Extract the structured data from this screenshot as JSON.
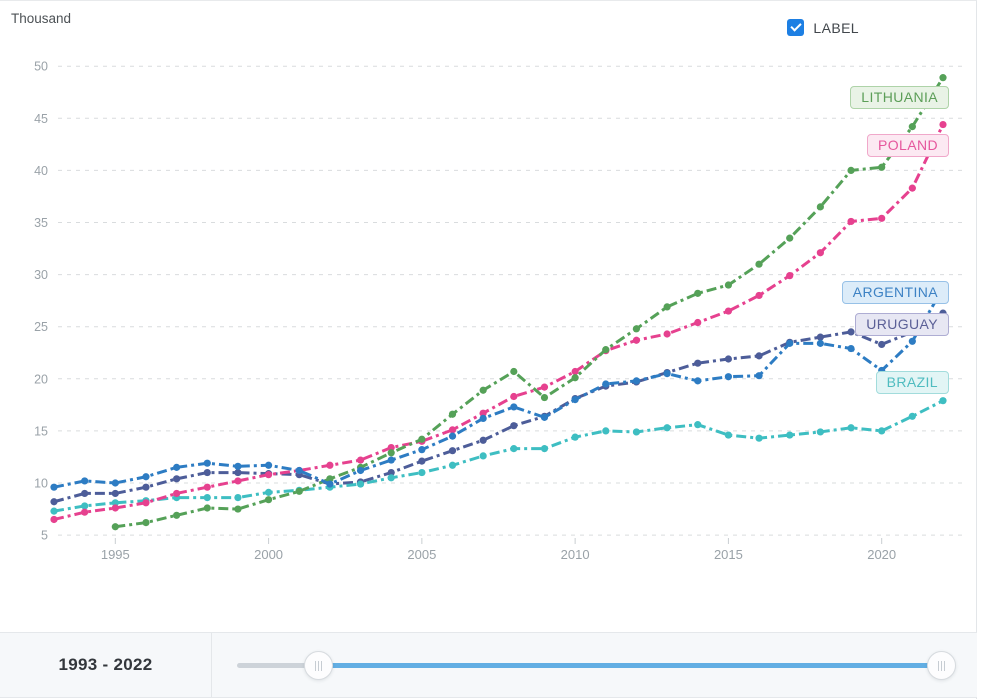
{
  "panel": {
    "y_axis_unit": "Thousand"
  },
  "label_toggle": {
    "text": "LABEL",
    "checked": true,
    "checkbox_color": "#1d7fe3"
  },
  "chart_data": {
    "type": "line",
    "title": "",
    "xlabel": "",
    "ylabel": "Thousand",
    "x": [
      1993,
      1994,
      1995,
      1996,
      1997,
      1998,
      1999,
      2000,
      2001,
      2002,
      2003,
      2004,
      2005,
      2006,
      2007,
      2008,
      2009,
      2010,
      2011,
      2012,
      2013,
      2014,
      2015,
      2016,
      2017,
      2018,
      2019,
      2020,
      2021,
      2022
    ],
    "x_tick_labels": [
      "1995",
      "2000",
      "2005",
      "2010",
      "2015",
      "2020"
    ],
    "y_tick_labels": [
      "5",
      "10",
      "15",
      "20",
      "25",
      "30",
      "35",
      "40",
      "45",
      "50"
    ],
    "ylim": [
      3.5,
      51.5
    ],
    "grid": "horizontal-dashed",
    "legend_position": "end-of-line-pills",
    "series": [
      {
        "name": "URUGUAY",
        "color": "#4d5d99",
        "label_bg": "#e7e7f3",
        "label_border": "#aeadd3",
        "label_text_color": "#5b6097",
        "label_y_value": 25.2,
        "values": [
          8.2,
          9.0,
          9.0,
          9.6,
          10.4,
          11.0,
          11.0,
          10.9,
          10.8,
          9.9,
          10.1,
          11.0,
          12.1,
          13.1,
          14.1,
          15.5,
          16.4,
          18.1,
          19.3,
          19.7,
          20.6,
          21.5,
          21.9,
          22.2,
          23.5,
          24.0,
          24.5,
          23.3,
          24.5,
          26.3
        ]
      },
      {
        "name": "BRAZIL",
        "color": "#3ebec2",
        "label_bg": "#e2f5f5",
        "label_border": "#a2dcdc",
        "label_text_color": "#4fbcc0",
        "label_y_value": 19.6,
        "values": [
          7.3,
          7.8,
          8.1,
          8.3,
          8.6,
          8.6,
          8.6,
          9.1,
          9.3,
          9.6,
          9.9,
          10.5,
          11.0,
          11.7,
          12.6,
          13.3,
          13.3,
          14.4,
          15.0,
          14.9,
          15.3,
          15.6,
          14.6,
          14.3,
          14.6,
          14.9,
          15.3,
          15.0,
          16.4,
          17.9
        ]
      },
      {
        "name": "POLAND",
        "color": "#e6418f",
        "label_bg": "#fce9f2",
        "label_border": "#f0a8ca",
        "label_text_color": "#e6579d",
        "label_y_value": 42.4,
        "values": [
          6.5,
          7.2,
          7.6,
          8.1,
          9.0,
          9.6,
          10.2,
          10.8,
          11.2,
          11.7,
          12.2,
          13.4,
          14.0,
          15.1,
          16.7,
          18.3,
          19.2,
          20.7,
          22.7,
          23.7,
          24.3,
          25.4,
          26.5,
          28.0,
          29.9,
          32.1,
          35.1,
          35.4,
          38.3,
          44.4
        ]
      },
      {
        "name": "LITHUANIA",
        "color": "#55a158",
        "label_bg": "#e9f3e6",
        "label_border": "#aed3a8",
        "label_text_color": "#5c9e58",
        "label_y_value": 47.0,
        "values": [
          null,
          null,
          5.8,
          6.2,
          6.9,
          7.6,
          7.5,
          8.4,
          9.2,
          10.4,
          11.5,
          12.9,
          14.2,
          16.6,
          18.9,
          20.7,
          18.2,
          20.1,
          22.8,
          24.8,
          26.9,
          28.2,
          29.0,
          31.0,
          33.5,
          36.5,
          40.0,
          40.3,
          44.2,
          48.9
        ]
      },
      {
        "name": "ARGENTINA",
        "color": "#2d7cc3",
        "label_bg": "#dcecf9",
        "label_border": "#97c1e7",
        "label_text_color": "#3d82c4",
        "label_y_value": 28.3,
        "values": [
          9.6,
          10.2,
          10.0,
          10.6,
          11.5,
          11.9,
          11.6,
          11.7,
          11.2,
          9.9,
          11.2,
          12.2,
          13.2,
          14.5,
          16.2,
          17.3,
          16.3,
          18.0,
          19.5,
          19.8,
          20.5,
          19.8,
          20.2,
          20.3,
          23.4,
          23.4,
          22.9,
          20.8,
          23.6,
          28.7
        ]
      }
    ]
  },
  "timeline": {
    "range_label": "1993 - 2022",
    "start_year": "1993",
    "end_year": "2022"
  }
}
